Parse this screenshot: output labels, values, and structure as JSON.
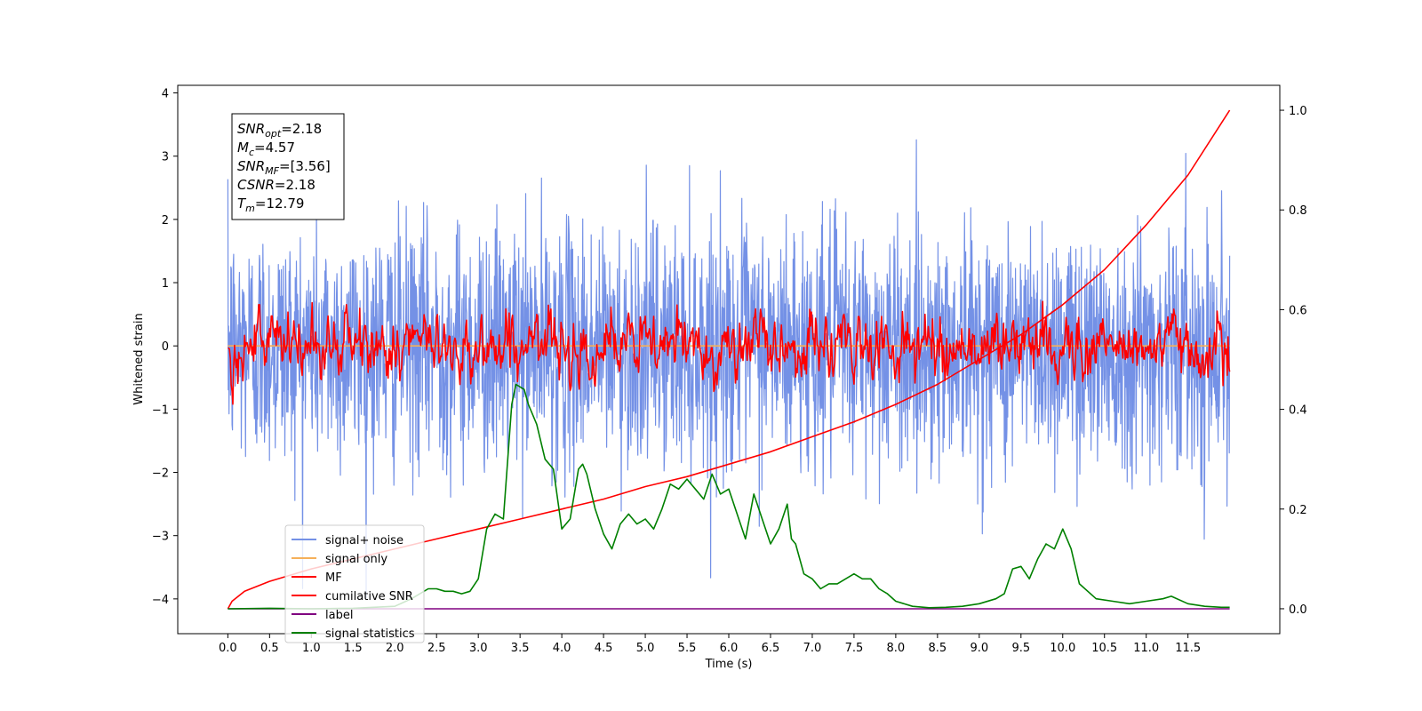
{
  "chart_data": {
    "type": "line",
    "xlabel": "Time (s)",
    "ylabel": "Whitened strain",
    "xlim": [
      -0.6,
      12.6
    ],
    "ylim": [
      -4.55,
      4.12
    ],
    "y2lim": [
      -0.05,
      1.05
    ],
    "xticks": [
      0.0,
      0.5,
      1.0,
      1.5,
      2.0,
      2.5,
      3.0,
      3.5,
      4.0,
      4.5,
      5.0,
      5.5,
      6.0,
      6.5,
      7.0,
      7.5,
      8.0,
      8.5,
      9.0,
      9.5,
      10.0,
      10.5,
      11.0,
      11.5
    ],
    "xtick_labels": [
      "0.0",
      "0.5",
      "1.0",
      "1.5",
      "2.0",
      "2.5",
      "3.0",
      "3.5",
      "4.0",
      "4.5",
      "5.0",
      "5.5",
      "6.0",
      "6.5",
      "7.0",
      "7.5",
      "8.0",
      "8.5",
      "9.0",
      "9.5",
      "10.0",
      "10.5",
      "11.0",
      "11.5"
    ],
    "yticks": [
      -4,
      -3,
      -2,
      -1,
      0,
      1,
      2,
      3,
      4
    ],
    "ytick_labels": [
      "−4",
      "−3",
      "−2",
      "−1",
      "0",
      "1",
      "2",
      "3",
      "4"
    ],
    "y2ticks": [
      0.0,
      0.2,
      0.4,
      0.6,
      0.8,
      1.0
    ],
    "y2tick_labels": [
      "0.0",
      "0.2",
      "0.4",
      "0.6",
      "0.8",
      "1.0"
    ],
    "legend_position": "lower-left",
    "grid": false,
    "annotation": {
      "lines": [
        {
          "label": "SNR",
          "sub": "opt",
          "value": "=2.18"
        },
        {
          "label": "M",
          "sub": "c",
          "value": "=4.57"
        },
        {
          "label": "SNR",
          "sub": "MF",
          "value": "=[3.56]"
        },
        {
          "label": "CSNR",
          "sub": "",
          "value": "=2.18"
        },
        {
          "label": "T",
          "sub": "m",
          "value": "=12.79"
        }
      ]
    },
    "series": [
      {
        "name": "signal+ noise",
        "color": "#7491e6",
        "axis": "left",
        "kind": "noise",
        "x_start": 0.0,
        "x_end": 12.0,
        "amplitude_std": 0.95
      },
      {
        "name": "signal only",
        "color": "#f5b05a",
        "axis": "left",
        "kind": "flat",
        "x_start": 0.0,
        "x_end": 12.0,
        "value": 0.0
      },
      {
        "name": "MF",
        "color": "#ff0000",
        "axis": "left",
        "kind": "noise",
        "x_start": 0.0,
        "x_end": 12.0,
        "amplitude_std": 0.3
      },
      {
        "name": "cumilative SNR",
        "color": "#ff0000",
        "axis": "right",
        "kind": "curve",
        "x": [
          0.0,
          0.05,
          0.2,
          0.5,
          1.0,
          1.5,
          2.0,
          2.5,
          3.0,
          3.5,
          4.0,
          4.5,
          5.0,
          5.5,
          6.0,
          6.5,
          7.0,
          7.5,
          8.0,
          8.5,
          9.0,
          9.5,
          10.0,
          10.5,
          11.0,
          11.5,
          12.0
        ],
        "y": [
          0.0,
          0.015,
          0.035,
          0.055,
          0.08,
          0.1,
          0.12,
          0.14,
          0.16,
          0.18,
          0.2,
          0.22,
          0.245,
          0.265,
          0.29,
          0.315,
          0.345,
          0.375,
          0.41,
          0.45,
          0.5,
          0.55,
          0.61,
          0.68,
          0.77,
          0.87,
          1.0
        ]
      },
      {
        "name": "label",
        "color": "#800080",
        "axis": "right",
        "kind": "curve",
        "x": [
          0.0,
          12.0
        ],
        "y": [
          0.0,
          0.0
        ]
      },
      {
        "name": "signal statistics",
        "color": "#008000",
        "axis": "right",
        "kind": "curve",
        "x": [
          0.0,
          0.5,
          1.0,
          1.5,
          2.0,
          2.2,
          2.4,
          2.5,
          2.6,
          2.7,
          2.8,
          2.9,
          3.0,
          3.1,
          3.2,
          3.3,
          3.4,
          3.45,
          3.55,
          3.6,
          3.7,
          3.8,
          3.9,
          4.0,
          4.1,
          4.2,
          4.25,
          4.3,
          4.4,
          4.5,
          4.6,
          4.7,
          4.8,
          4.9,
          5.0,
          5.1,
          5.2,
          5.3,
          5.4,
          5.5,
          5.6,
          5.7,
          5.8,
          5.9,
          6.0,
          6.1,
          6.2,
          6.3,
          6.4,
          6.5,
          6.6,
          6.7,
          6.75,
          6.8,
          6.9,
          7.0,
          7.1,
          7.2,
          7.3,
          7.4,
          7.5,
          7.6,
          7.7,
          7.8,
          7.9,
          8.0,
          8.2,
          8.4,
          8.6,
          8.8,
          9.0,
          9.2,
          9.3,
          9.4,
          9.5,
          9.6,
          9.7,
          9.8,
          9.9,
          10.0,
          10.1,
          10.2,
          10.4,
          10.6,
          10.8,
          11.0,
          11.2,
          11.3,
          11.5,
          11.7,
          11.9,
          12.0
        ],
        "y": [
          0.0,
          0.001,
          0.0,
          0.001,
          0.005,
          0.02,
          0.04,
          0.04,
          0.035,
          0.035,
          0.03,
          0.035,
          0.06,
          0.16,
          0.19,
          0.18,
          0.41,
          0.45,
          0.44,
          0.41,
          0.37,
          0.3,
          0.28,
          0.16,
          0.18,
          0.28,
          0.29,
          0.27,
          0.2,
          0.15,
          0.12,
          0.17,
          0.19,
          0.17,
          0.18,
          0.16,
          0.2,
          0.25,
          0.24,
          0.26,
          0.24,
          0.22,
          0.27,
          0.23,
          0.24,
          0.19,
          0.14,
          0.23,
          0.18,
          0.13,
          0.16,
          0.21,
          0.14,
          0.13,
          0.07,
          0.06,
          0.04,
          0.05,
          0.05,
          0.06,
          0.07,
          0.06,
          0.06,
          0.04,
          0.03,
          0.015,
          0.005,
          0.002,
          0.003,
          0.005,
          0.01,
          0.02,
          0.03,
          0.08,
          0.085,
          0.06,
          0.1,
          0.13,
          0.12,
          0.16,
          0.12,
          0.05,
          0.02,
          0.015,
          0.01,
          0.015,
          0.02,
          0.025,
          0.01,
          0.005,
          0.003,
          0.003
        ]
      }
    ]
  }
}
